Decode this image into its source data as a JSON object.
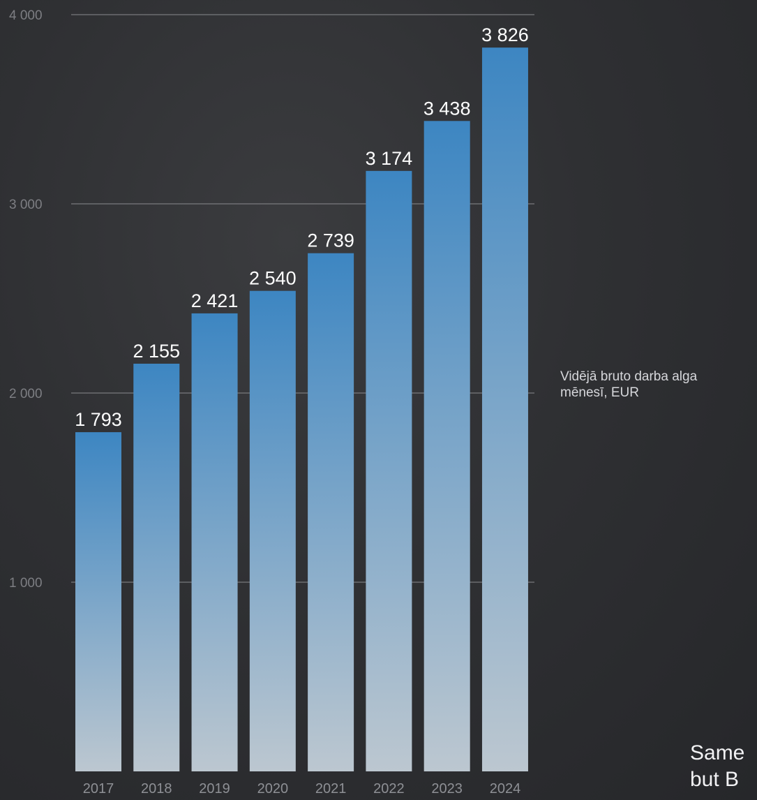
{
  "chart_data": {
    "type": "bar",
    "categories": [
      "2017",
      "2018",
      "2019",
      "2020",
      "2021",
      "2022",
      "2023",
      "2024"
    ],
    "values": [
      1793,
      2155,
      2421,
      2540,
      2739,
      3174,
      3438,
      3826
    ],
    "value_labels": [
      "1 793",
      "2 155",
      "2 421",
      "2 540",
      "2 739",
      "3 174",
      "3 438",
      "3 826"
    ],
    "y_ticks": [
      {
        "value": 1000,
        "label": "1 000"
      },
      {
        "value": 2000,
        "label": "2 000"
      },
      {
        "value": 3000,
        "label": "3 000"
      },
      {
        "value": 4000,
        "label": "4 000"
      }
    ],
    "ylim": [
      0,
      4000
    ],
    "grid": true,
    "legend_placement": "right",
    "series": [
      {
        "name_lines": [
          "Vidējā bruto darba alga",
          "mēnesī, EUR"
        ]
      }
    ],
    "colors": {
      "bar_top": "#3d86c2",
      "bar_bottom": "#bcc7d0",
      "gridline": "#8a8b8f",
      "tick_label": "#7d7e83",
      "value_label": "#ffffff",
      "category_label": "#8e9095"
    }
  },
  "corner_note": {
    "lines": [
      "Same",
      "but B"
    ]
  }
}
